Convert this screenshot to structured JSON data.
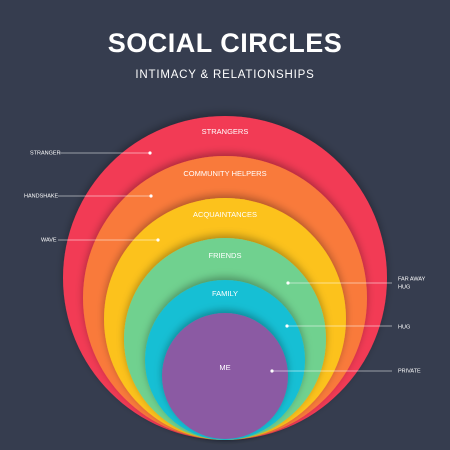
{
  "title": "SOCIAL CIRCLES",
  "subtitle": "INTIMACY & RELATIONSHIPS",
  "circles": [
    {
      "label": "STRANGERS"
    },
    {
      "label": "COMMUNITY HELPERS"
    },
    {
      "label": "ACQUAINTANCES"
    },
    {
      "label": "FRIENDS"
    },
    {
      "label": "FAMILY"
    },
    {
      "label": "ME"
    }
  ],
  "annotations": [
    {
      "lines": [
        "STRANGER"
      ]
    },
    {
      "lines": [
        "HANDSHAKE"
      ]
    },
    {
      "lines": [
        "WAVE"
      ]
    },
    {
      "lines": [
        "FAR AWAY",
        "HUG"
      ]
    },
    {
      "lines": [
        "HUG"
      ]
    },
    {
      "lines": [
        "PRIVATE"
      ]
    }
  ]
}
